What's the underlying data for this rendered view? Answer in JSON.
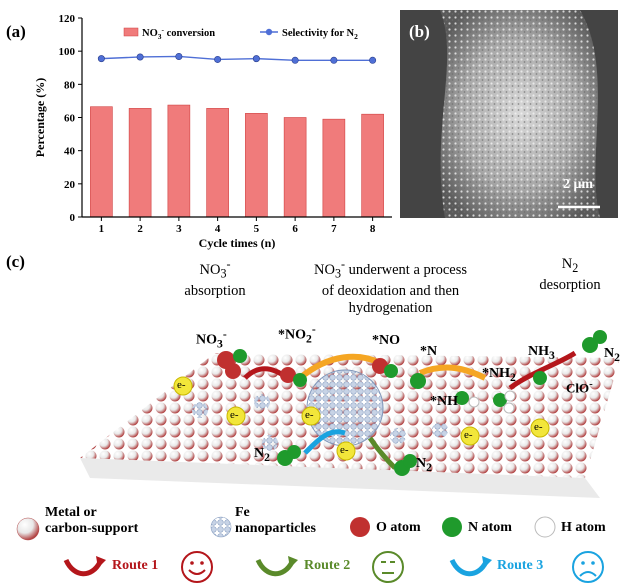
{
  "panels": {
    "a_label": "(a)",
    "b_label": "(b)",
    "c_label": "(c)"
  },
  "chart_data": {
    "type": "bar",
    "title": "",
    "xlabel": "Cycle times (n)",
    "ylabel": "Percentage (%)",
    "categories": [
      "1",
      "2",
      "3",
      "4",
      "5",
      "6",
      "7",
      "8"
    ],
    "ylim": [
      0,
      120
    ],
    "yticks": [
      "0",
      "20",
      "40",
      "60",
      "80",
      "100",
      "120"
    ],
    "series": [
      {
        "name": "NO3- conversion",
        "legend_main": "NO",
        "legend_sub": "3",
        "legend_sup": "-",
        "legend_rest": " conversion",
        "kind": "bar",
        "color": "#f07b7b",
        "values": [
          66.5,
          65.5,
          67.5,
          65.5,
          62.5,
          60,
          59,
          62
        ]
      },
      {
        "name": "Selectivity for N2",
        "legend_main": "Selectivity for N",
        "legend_sub": "2",
        "kind": "line",
        "color": "#4f6fd6",
        "values": [
          95.5,
          96.5,
          96.8,
          95,
          95.5,
          94.5,
          94.5,
          94.5
        ]
      }
    ],
    "grid": false,
    "legend": "top"
  },
  "sem": {
    "scale_label": "2 μm"
  },
  "stages": [
    {
      "l1_main": "NO",
      "l1_sub": "3",
      "l1_sup": "-",
      "l2": "absorption"
    },
    {
      "l1_main": "NO",
      "l1_sub": "3",
      "l1_sup": "-",
      "l1_rest": " underwent a process",
      "l2": "of deoxidation and then",
      "l3": "hydrogenation"
    },
    {
      "l1_main": "N",
      "l1_sub": "2",
      "l2": "desorption"
    }
  ],
  "species": {
    "no3": {
      "main": "NO",
      "sub": "3",
      "sup": "-"
    },
    "no2": {
      "main": "*NO",
      "sub": "2",
      "sup": "-"
    },
    "no": "*NO",
    "n": "*N",
    "nh": "*NH",
    "nh2": {
      "main": "*NH",
      "sub": "2"
    },
    "nh3": {
      "main": "NH",
      "sub": "3"
    },
    "n2a": {
      "main": "N",
      "sub": "2"
    },
    "n2b": {
      "main": "N",
      "sub": "2"
    },
    "n2c": {
      "main": "N",
      "sub": "2"
    },
    "clo": {
      "main": "ClO",
      "sup": "-"
    },
    "electron": "e-"
  },
  "legend": {
    "support_l1": "Metal or",
    "support_l2": "carbon-support",
    "fe_l1": "Fe",
    "fe_l2": "nanoparticles",
    "o_atom": "O atom",
    "n_atom": "N atom",
    "h_atom": "H atom"
  },
  "routes": [
    {
      "label": "Route 1",
      "color": "#b4161b",
      "mood": "happy"
    },
    {
      "label": "Route 2",
      "color": "#5a8a2a",
      "mood": "neutral"
    },
    {
      "label": "Route 3",
      "color": "#1aa3e0",
      "mood": "sad"
    }
  ],
  "colors": {
    "o_atom": "#c0302f",
    "n_atom": "#1f9a2c",
    "fe": "#9ab0d0",
    "electron": "#f2e63a",
    "arrow_orange": "#f5a623"
  }
}
